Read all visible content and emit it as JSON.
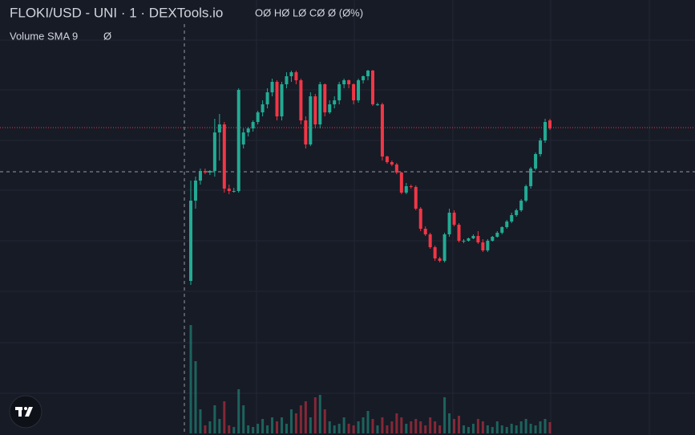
{
  "chart_data": {
    "type": "candlestick",
    "title": "FLOKI/USD - UNI · 1 · DEXTools.io",
    "ohlc_legend": "OØ HØ LØ CØ Ø (Ø%)",
    "study_name": "Volume SMA 9",
    "study_value": "Ø",
    "up_color": "#22ab94",
    "down_color": "#f23645",
    "ylim": [
      -140,
      400
    ],
    "volume_ylim": [
      0,
      140
    ],
    "open": [
      50,
      150,
      175,
      187,
      185,
      187,
      235,
      245,
      165,
      162,
      162,
      220,
      235,
      240,
      248,
      260,
      270,
      285,
      298,
      255,
      295,
      305,
      310,
      300,
      250,
      220,
      280,
      245,
      295,
      260,
      270,
      275,
      295,
      300,
      295,
      275,
      300,
      305,
      312,
      270,
      270,
      205,
      198,
      195,
      185,
      160,
      168,
      167,
      140,
      115,
      108,
      92,
      78,
      75,
      108,
      135,
      120,
      100,
      100,
      103,
      106,
      98,
      88,
      100,
      105,
      110,
      117,
      124,
      132,
      138,
      150,
      168,
      190,
      208,
      225,
      250
    ],
    "high": [
      175,
      180,
      190,
      190,
      188,
      252,
      258,
      248,
      170,
      166,
      290,
      240,
      242,
      250,
      262,
      275,
      290,
      302,
      300,
      298,
      310,
      312,
      312,
      302,
      255,
      285,
      283,
      298,
      296,
      275,
      280,
      298,
      302,
      301,
      296,
      302,
      306,
      313,
      313,
      272,
      272,
      206,
      200,
      197,
      186,
      172,
      170,
      169,
      142,
      118,
      110,
      94,
      80,
      110,
      140,
      138,
      122,
      102,
      104,
      108,
      112,
      102,
      102,
      106,
      112,
      118,
      126,
      135,
      140,
      152,
      170,
      192,
      210,
      228,
      252,
      252
    ],
    "low": [
      45,
      140,
      170,
      183,
      182,
      180,
      200,
      160,
      158,
      160,
      160,
      215,
      230,
      236,
      245,
      255,
      265,
      280,
      250,
      250,
      290,
      298,
      295,
      245,
      215,
      218,
      240,
      240,
      255,
      258,
      265,
      270,
      290,
      290,
      270,
      272,
      296,
      300,
      268,
      268,
      200,
      196,
      193,
      183,
      158,
      158,
      165,
      138,
      112,
      106,
      90,
      75,
      73,
      73,
      105,
      118,
      98,
      97,
      99,
      102,
      96,
      86,
      86,
      99,
      104,
      108,
      115,
      122,
      130,
      136,
      148,
      165,
      188,
      205,
      222,
      238
    ],
    "close": [
      150,
      175,
      187,
      185,
      187,
      235,
      245,
      165,
      162,
      162,
      288,
      235,
      240,
      248,
      260,
      270,
      285,
      298,
      255,
      295,
      305,
      310,
      300,
      250,
      220,
      280,
      245,
      295,
      260,
      270,
      275,
      295,
      300,
      295,
      275,
      300,
      305,
      312,
      270,
      270,
      205,
      198,
      195,
      185,
      160,
      168,
      167,
      140,
      115,
      108,
      92,
      78,
      75,
      108,
      135,
      120,
      100,
      100,
      103,
      106,
      98,
      88,
      100,
      105,
      110,
      117,
      124,
      132,
      138,
      150,
      168,
      190,
      208,
      225,
      248,
      240
    ],
    "volume": [
      135,
      90,
      30,
      10,
      15,
      35,
      18,
      40,
      10,
      8,
      55,
      35,
      10,
      8,
      12,
      18,
      10,
      20,
      15,
      20,
      12,
      30,
      25,
      35,
      40,
      20,
      45,
      48,
      30,
      15,
      10,
      12,
      20,
      12,
      10,
      15,
      20,
      28,
      18,
      10,
      20,
      10,
      15,
      25,
      20,
      12,
      15,
      18,
      15,
      10,
      20,
      15,
      10,
      45,
      25,
      18,
      22,
      10,
      8,
      12,
      18,
      15,
      10,
      8,
      15,
      10,
      8,
      12,
      10,
      15,
      18,
      12,
      10,
      15,
      18,
      14
    ]
  }
}
